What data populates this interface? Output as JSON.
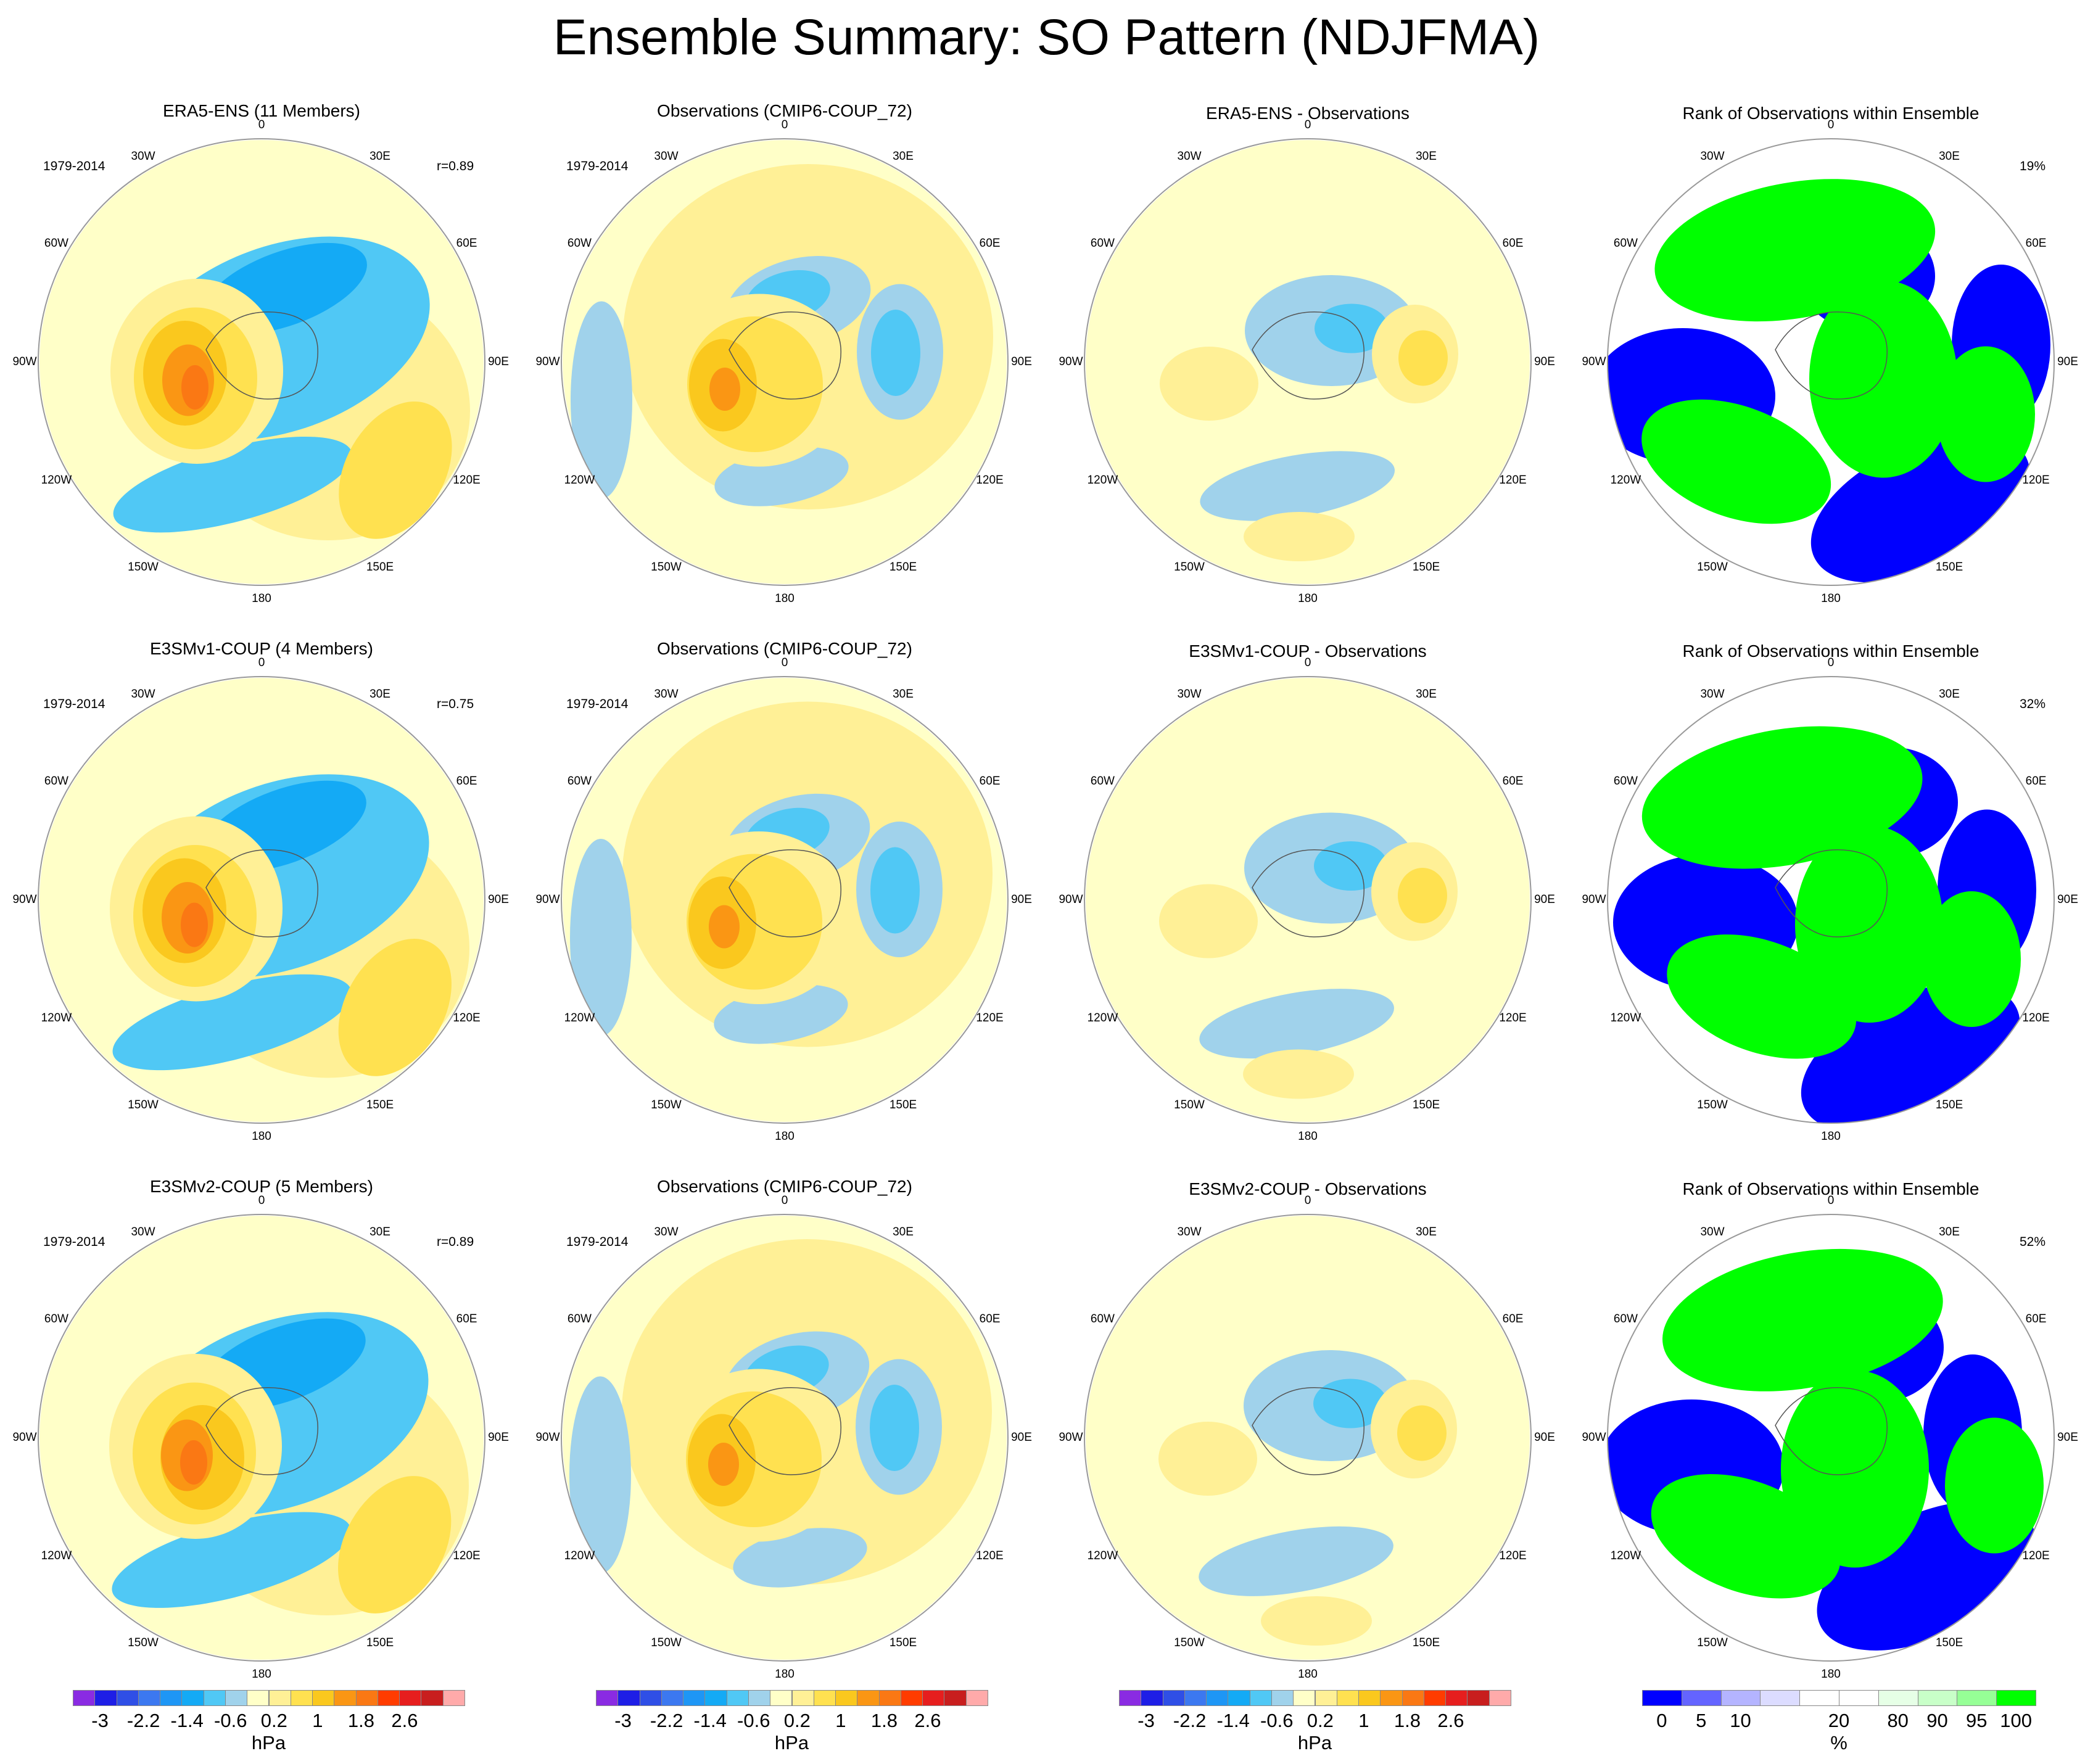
{
  "title": "Ensemble Summary: SO Pattern (NDJFMA)",
  "chart_data": {
    "type": "polar-contour-map-grid",
    "rows": [
      {
        "panels": [
          {
            "title": "ERA5-ENS (11 Members)",
            "period": "1979-2014",
            "stat": "r=0.89",
            "kind": "model"
          },
          {
            "title": "Observations (CMIP6-COUP_72)",
            "period": "1979-2014",
            "stat": "",
            "kind": "obs"
          },
          {
            "title": "ERA5-ENS - Observations",
            "period": "",
            "stat": "",
            "kind": "diff"
          },
          {
            "title": "Rank of Observations within Ensemble",
            "period": "",
            "stat": "19%",
            "kind": "rank"
          }
        ]
      },
      {
        "panels": [
          {
            "title": "E3SMv1-COUP (4 Members)",
            "period": "1979-2014",
            "stat": "r=0.75",
            "kind": "model"
          },
          {
            "title": "Observations (CMIP6-COUP_72)",
            "period": "1979-2014",
            "stat": "",
            "kind": "obs"
          },
          {
            "title": "E3SMv1-COUP - Observations",
            "period": "",
            "stat": "",
            "kind": "diff"
          },
          {
            "title": "Rank of Observations within Ensemble",
            "period": "",
            "stat": "32%",
            "kind": "rank"
          }
        ]
      },
      {
        "panels": [
          {
            "title": "E3SMv2-COUP (5 Members)",
            "period": "1979-2014",
            "stat": "r=0.89",
            "kind": "model"
          },
          {
            "title": "Observations (CMIP6-COUP_72)",
            "period": "1979-2014",
            "stat": "",
            "kind": "obs"
          },
          {
            "title": "E3SMv2-COUP - Observations",
            "period": "",
            "stat": "",
            "kind": "diff"
          },
          {
            "title": "Rank of Observations within Ensemble",
            "period": "",
            "stat": "52%",
            "kind": "rank"
          }
        ]
      }
    ],
    "longitude_labels": [
      "0",
      "30E",
      "60E",
      "90E",
      "120E",
      "150E",
      "180",
      "150W",
      "120W",
      "90W",
      "60W",
      "30W"
    ],
    "pressure_colorbar": {
      "unit": "hPa",
      "levels": [
        "-3",
        "-2.2",
        "-1.4",
        "-0.6",
        "0.2",
        "1",
        "1.8",
        "2.6"
      ],
      "colors": [
        "#8a2be2",
        "#1e1ee6",
        "#2f4fe6",
        "#3c78f0",
        "#1e96f5",
        "#14aaf5",
        "#50c8f5",
        "#a0d2eb",
        "#ffffc8",
        "#fff096",
        "#ffe150",
        "#fac81e",
        "#fa9614",
        "#fa7814",
        "#ff3c00",
        "#e61e1e",
        "#c81e1e",
        "#ffaaaa"
      ]
    },
    "rank_colorbar": {
      "unit": "%",
      "levels": [
        "0",
        "5",
        "10",
        "20",
        "80",
        "90",
        "95",
        "100"
      ],
      "colors": [
        "#0000ff",
        "#6464ff",
        "#b4b4ff",
        "#dcdcff",
        "#ffffff",
        "#ffffff",
        "#e6ffe6",
        "#c8ffc8",
        "#96ff96",
        "#00ff00"
      ]
    }
  }
}
